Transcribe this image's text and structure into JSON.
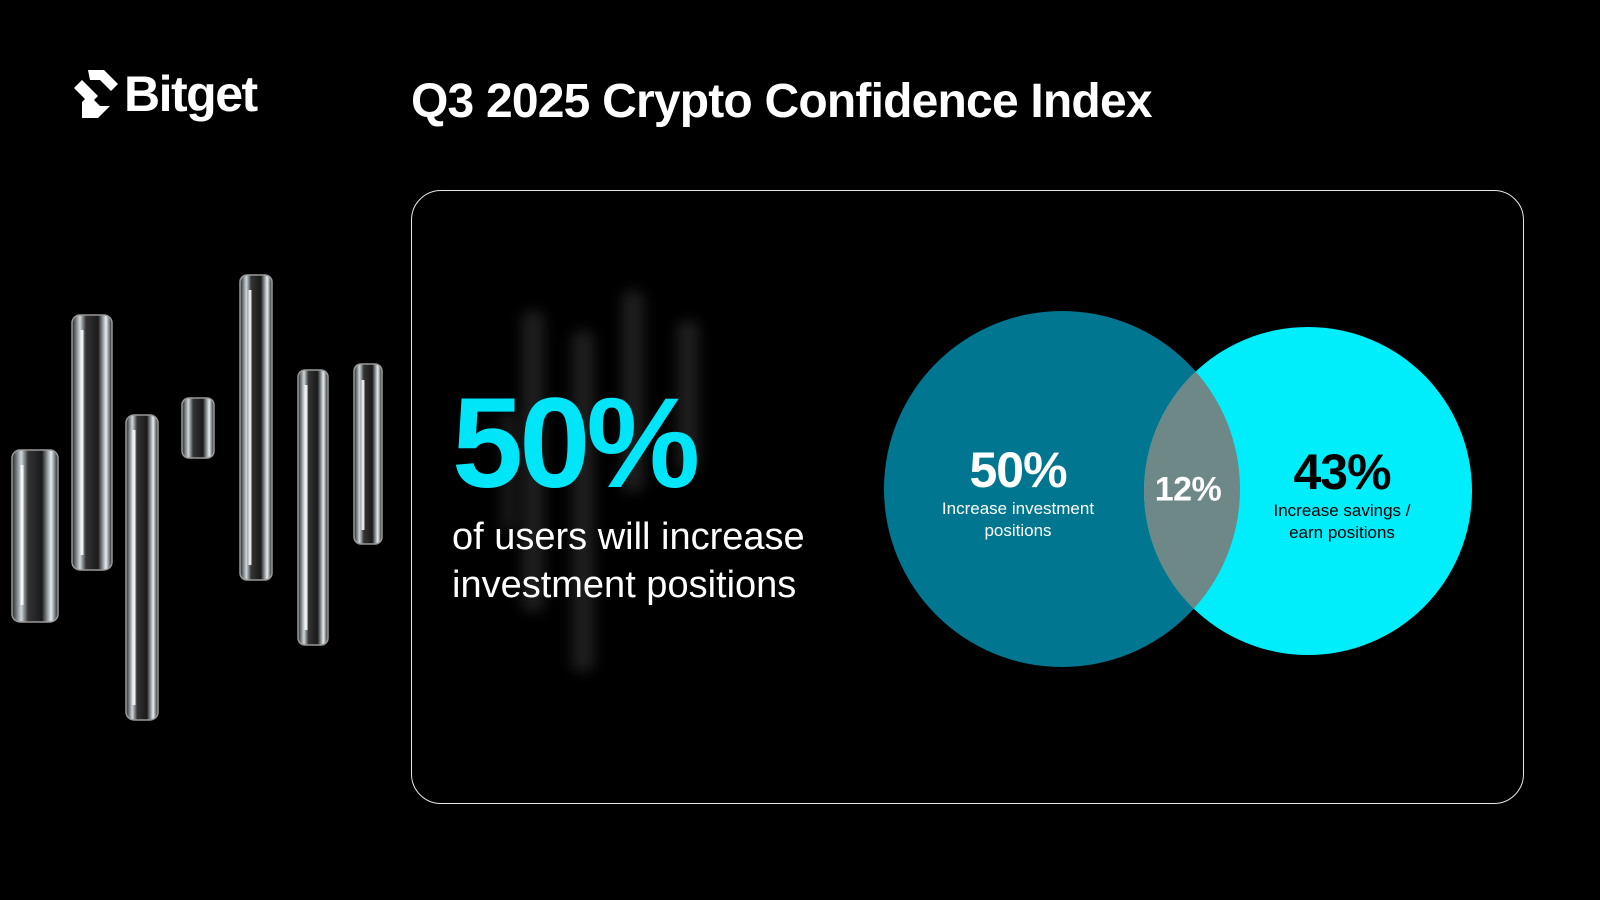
{
  "brand": {
    "name": "Bitget",
    "logo_icon": "bitget-arrow-icon",
    "accent": "#00e5f8"
  },
  "header": {
    "title": "Q3 2025 Crypto Confidence Index"
  },
  "highlight": {
    "value": "50%",
    "line1": "of users will increase",
    "line2": "investment positions"
  },
  "venn": {
    "left": {
      "value": "50%",
      "line1": "Increase investment",
      "line2": "positions",
      "color": "#007690"
    },
    "right": {
      "value": "43%",
      "line1": "Increase savings /",
      "line2": "earn positions",
      "color": "#00eefc"
    },
    "overlap": {
      "value": "12%",
      "color": "#6e8787"
    }
  }
}
